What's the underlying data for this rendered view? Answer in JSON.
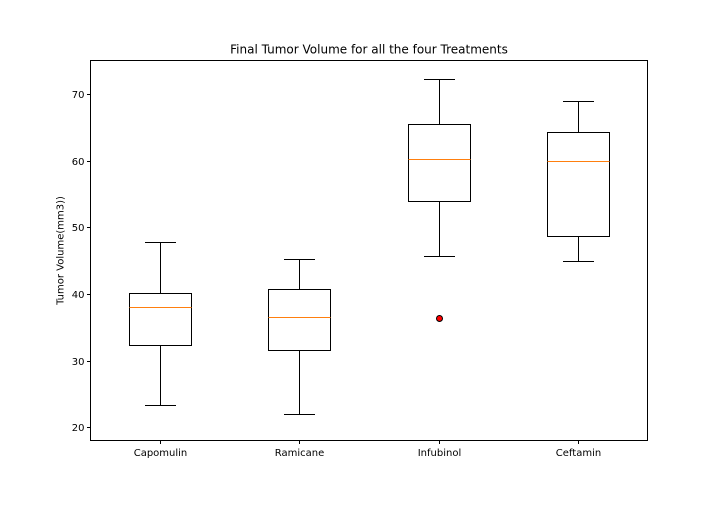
{
  "chart_data": {
    "type": "box",
    "title": "Final Tumor Volume for all the four Treatments",
    "xlabel": "",
    "ylabel": "Tumor Volume(mm3))",
    "ylim": [
      18.0,
      75.0
    ],
    "yticks": [
      20,
      30,
      40,
      50,
      60,
      70
    ],
    "ytick_labels": [
      "20",
      "30",
      "40",
      "50",
      "60",
      "70"
    ],
    "categories": [
      "Capomulin",
      "Ramicane",
      "Infubinol",
      "Ceftamin"
    ],
    "boxes": [
      {
        "whisker_low": 23.3,
        "q1": 32.4,
        "median": 38.1,
        "q3": 40.2,
        "whisker_high": 47.7,
        "outliers": []
      },
      {
        "whisker_low": 22.0,
        "q1": 31.6,
        "median": 36.6,
        "q3": 40.7,
        "whisker_high": 45.2,
        "outliers": []
      },
      {
        "whisker_low": 45.7,
        "q1": 54.0,
        "median": 60.2,
        "q3": 65.5,
        "whisker_high": 72.2,
        "outliers": [
          36.3
        ]
      },
      {
        "whisker_low": 45.0,
        "q1": 48.7,
        "median": 59.9,
        "q3": 64.3,
        "whisker_high": 68.9,
        "outliers": []
      }
    ],
    "grid": false,
    "colors": {
      "box_edge": "#000000",
      "median": "#ff7f0e",
      "outlier_fill": "#ff0000",
      "outlier_edge": "#000000",
      "background": "#ffffff"
    }
  }
}
